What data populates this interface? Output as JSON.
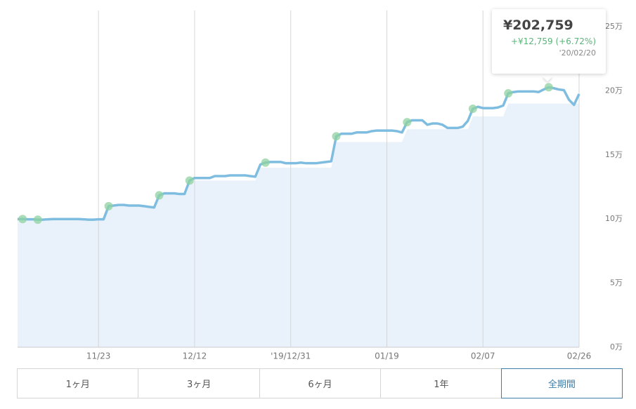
{
  "chart_data": {
    "type": "line",
    "categories": [
      null,
      null,
      null,
      null,
      null,
      null,
      null,
      null,
      null,
      null,
      null,
      null,
      null,
      null,
      null,
      null,
      "11/23",
      null,
      null,
      null,
      null,
      null,
      null,
      null,
      null,
      null,
      null,
      null,
      null,
      null,
      null,
      null,
      null,
      null,
      null,
      "12/12",
      null,
      null,
      null,
      null,
      null,
      null,
      null,
      null,
      null,
      null,
      null,
      null,
      null,
      null,
      null,
      null,
      null,
      null,
      "'19/12/31",
      null,
      null,
      null,
      null,
      null,
      null,
      null,
      null,
      null,
      null,
      null,
      null,
      null,
      null,
      null,
      null,
      null,
      null,
      "01/19",
      null,
      null,
      null,
      null,
      null,
      null,
      null,
      null,
      null,
      null,
      null,
      null,
      null,
      null,
      null,
      null,
      null,
      null,
      "02/07",
      null,
      null,
      null,
      null,
      null,
      null,
      null,
      null,
      null,
      null,
      null,
      null,
      null,
      null,
      null,
      null,
      null,
      null,
      "02/26"
    ],
    "series": [
      {
        "color": "#7fbde0",
        "values": [
          100000,
          100000,
          99800,
          99800,
          99500,
          99500,
          99800,
          100000,
          100000,
          100000,
          100000,
          100000,
          100000,
          99800,
          99500,
          99500,
          99800,
          99800,
          110000,
          110500,
          111000,
          111000,
          110500,
          110500,
          110500,
          110000,
          109500,
          109000,
          118500,
          120000,
          120000,
          120000,
          119500,
          119500,
          130000,
          132000,
          132000,
          132000,
          132000,
          133500,
          133500,
          133500,
          134000,
          134000,
          134000,
          134000,
          133500,
          133000,
          142500,
          144000,
          144500,
          144500,
          144500,
          143500,
          143500,
          143500,
          144000,
          143500,
          143500,
          143500,
          144000,
          144500,
          145000,
          164500,
          166500,
          166500,
          166500,
          167500,
          167500,
          167500,
          168500,
          169000,
          169000,
          169000,
          169000,
          168500,
          167500,
          175500,
          177000,
          177000,
          177000,
          173500,
          174500,
          174500,
          173500,
          171000,
          171000,
          171000,
          172000,
          176500,
          186000,
          187500,
          186500,
          186500,
          186500,
          187000,
          188500,
          198000,
          199000,
          199500,
          199500,
          199500,
          199500,
          199000,
          201000,
          202759,
          202000,
          201000,
          200500,
          193000,
          189000,
          197500
        ]
      },
      {
        "type": "area",
        "color": "#e9f1fa",
        "values": [
          100000,
          100000,
          100000,
          100000,
          100000,
          100000,
          100000,
          100000,
          100000,
          100000,
          100000,
          100000,
          100000,
          100000,
          100000,
          100000,
          100000,
          100000,
          110000,
          110000,
          110000,
          110000,
          110000,
          110000,
          110000,
          110000,
          110000,
          110000,
          120000,
          120000,
          120000,
          120000,
          120000,
          120000,
          130000,
          130000,
          130000,
          130000,
          130000,
          130000,
          130000,
          130000,
          130000,
          130000,
          130000,
          130000,
          130000,
          130000,
          140000,
          140000,
          140000,
          140000,
          140000,
          140000,
          140000,
          140000,
          140000,
          140000,
          140000,
          140000,
          140000,
          140000,
          140000,
          160000,
          160000,
          160000,
          160000,
          160000,
          160000,
          160000,
          160000,
          160000,
          160000,
          160000,
          160000,
          160000,
          160000,
          170000,
          170000,
          170000,
          170000,
          170000,
          170000,
          170000,
          170000,
          170000,
          170000,
          170000,
          170000,
          170000,
          180000,
          180000,
          180000,
          180000,
          180000,
          180000,
          180000,
          190000,
          190000,
          190000,
          190000,
          190000,
          190000,
          190000,
          190000,
          190000,
          190000,
          190000,
          190000,
          190000,
          190000,
          190000
        ]
      },
      {
        "type": "scatter",
        "color": "#8fd3a0",
        "values": [
          null,
          100000,
          null,
          null,
          99500,
          null,
          null,
          null,
          null,
          null,
          null,
          null,
          null,
          null,
          null,
          null,
          null,
          null,
          110000,
          null,
          null,
          null,
          null,
          null,
          null,
          null,
          null,
          null,
          118500,
          null,
          null,
          null,
          null,
          null,
          130000,
          null,
          null,
          null,
          null,
          null,
          null,
          null,
          null,
          null,
          null,
          null,
          null,
          null,
          null,
          144000,
          null,
          null,
          null,
          null,
          null,
          null,
          null,
          null,
          null,
          null,
          null,
          null,
          null,
          164500,
          null,
          null,
          null,
          null,
          null,
          null,
          null,
          null,
          null,
          null,
          null,
          null,
          null,
          175500,
          null,
          null,
          null,
          null,
          null,
          null,
          null,
          null,
          null,
          null,
          null,
          null,
          186000,
          null,
          null,
          null,
          null,
          null,
          null,
          198000,
          null,
          null,
          null,
          null,
          null,
          null,
          null,
          202759,
          null,
          null,
          null,
          null,
          null,
          null
        ]
      }
    ],
    "ylim": [
      0,
      250000
    ],
    "yticks": [
      {
        "value": 0,
        "label": "0万"
      },
      {
        "value": 50000,
        "label": "5万"
      },
      {
        "value": 100000,
        "label": "10万"
      },
      {
        "value": 150000,
        "label": "15万"
      },
      {
        "value": 200000,
        "label": "20万"
      },
      {
        "value": 250000,
        "label": "25万"
      }
    ],
    "grid": true
  },
  "tooltip": {
    "value": "¥202,759",
    "change": "+¥12,759 (+6.72%)",
    "date": "'20/02/20"
  },
  "range_buttons": [
    {
      "label": "1ヶ月",
      "selected": false
    },
    {
      "label": "3ヶ月",
      "selected": false
    },
    {
      "label": "6ヶ月",
      "selected": false
    },
    {
      "label": "1年",
      "selected": false
    },
    {
      "label": "全期間",
      "selected": true
    }
  ]
}
